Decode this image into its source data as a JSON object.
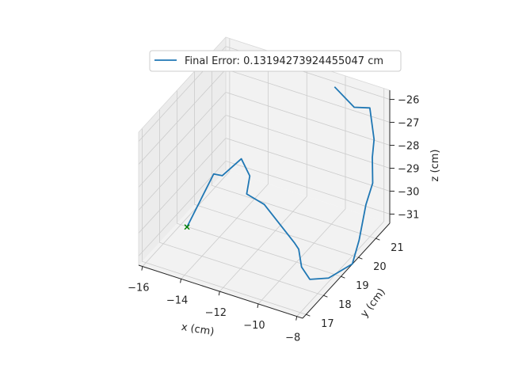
{
  "chart_data": {
    "type": "line",
    "projection": "3d",
    "grid": true,
    "legend_placement": "top-center",
    "xlabel": "x (cm)",
    "ylabel": "y (cm)",
    "zlabel": "z (cm)",
    "xlim": [
      -16.2,
      -7.7
    ],
    "ylim": [
      16.8,
      21.8
    ],
    "zlim": [
      -31.4,
      -25.6
    ],
    "x_ticks": [
      -16,
      -14,
      -12,
      -10,
      -8
    ],
    "x_tick_labels": [
      "−16",
      "−14",
      "−12",
      "−10",
      "−8"
    ],
    "y_ticks": [
      17,
      18,
      19,
      20,
      21
    ],
    "y_tick_labels": [
      "17",
      "18",
      "19",
      "20",
      "21"
    ],
    "z_ticks": [
      -31,
      -30,
      -29,
      -28,
      -27,
      -26
    ],
    "z_tick_labels": [
      "−31",
      "−30",
      "−29",
      "−28",
      "−27",
      "−26"
    ],
    "colors": {
      "line": "#1f77b4",
      "target_marker": "#008000",
      "pane": "#f2f2f2",
      "grid": "#cccccc"
    },
    "series": [
      {
        "name": "Final Error: 0.13194273924455047 cm",
        "x": [
          -15.5,
          -15.2,
          -15.3,
          -14.4,
          -13.6,
          -13.4,
          -12.4,
          -10.1,
          -9.8,
          -9.2,
          -8.5,
          -7.8,
          -7.2,
          -7.3,
          -7.4,
          -7.5,
          -7.7,
          -7.7,
          -8.1,
          -9.0,
          -10.2
        ],
        "y": [
          18.8,
          20.0,
          20.6,
          20.7,
          20.3,
          19.9,
          19.8,
          19.0,
          18.9,
          18.4,
          18.1,
          18.4,
          19.1,
          19.6,
          20.1,
          20.6,
          20.8,
          20.9,
          21.1,
          21.2,
          21.4
        ],
        "z": [
          -31.2,
          -29.8,
          -30.4,
          -29.5,
          -29.7,
          -30.1,
          -30.2,
          -30.6,
          -30.7,
          -30.9,
          -31.0,
          -31.0,
          -30.8,
          -30.2,
          -29.1,
          -28.6,
          -27.7,
          -27.0,
          -25.9,
          -26.2,
          -25.8
        ]
      }
    ],
    "markers": [
      {
        "label": "target",
        "symbol": "x",
        "x": -15.5,
        "y": 18.8,
        "z": -31.2
      }
    ]
  }
}
